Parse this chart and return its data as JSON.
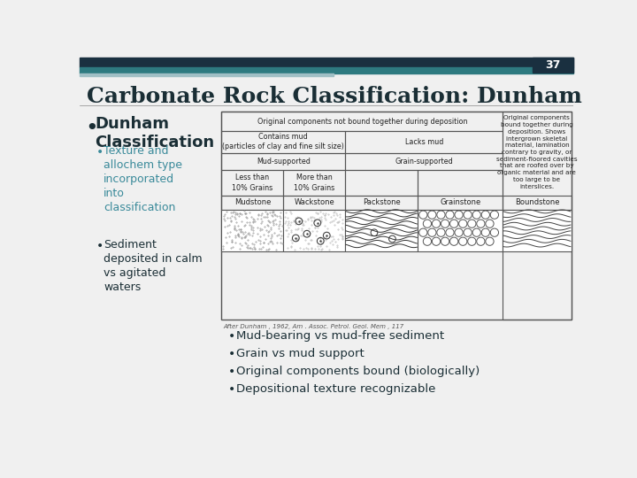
{
  "slide_number": "37",
  "title": "Carbonate Rock Classification: Dunham",
  "bg_color": "#f0f0f0",
  "header_bar_color1": "#1a3040",
  "header_bar_color2": "#2e7a80",
  "header_accent_color": "#a0bfc5",
  "title_color": "#1a2e35",
  "bullet1_text": "Dunham\nClassification",
  "bullet1_color": "#1a2e35",
  "sub_bullet1_text": "Texture and\nallochem type\nincorporated\ninto\nclassification",
  "sub_bullet1_color": "#3a8a9a",
  "sub_bullet2_text": "Sediment\ndeposited in calm\nvs agitated\nwaters",
  "sub_bullet2_color": "#1a2e35",
  "right_bullets": [
    "Mud-bearing vs mud-free sediment",
    "Grain vs mud support",
    "Original components bound (biologically)",
    "Depositional texture recognizable"
  ],
  "right_bullets_color": "#1a2e35",
  "table_border_color": "#555555",
  "table_text_color": "#222222",
  "caption_text": "After Dunham , 1962, Am . Assoc. Petrol. Geol. Mem , 117"
}
